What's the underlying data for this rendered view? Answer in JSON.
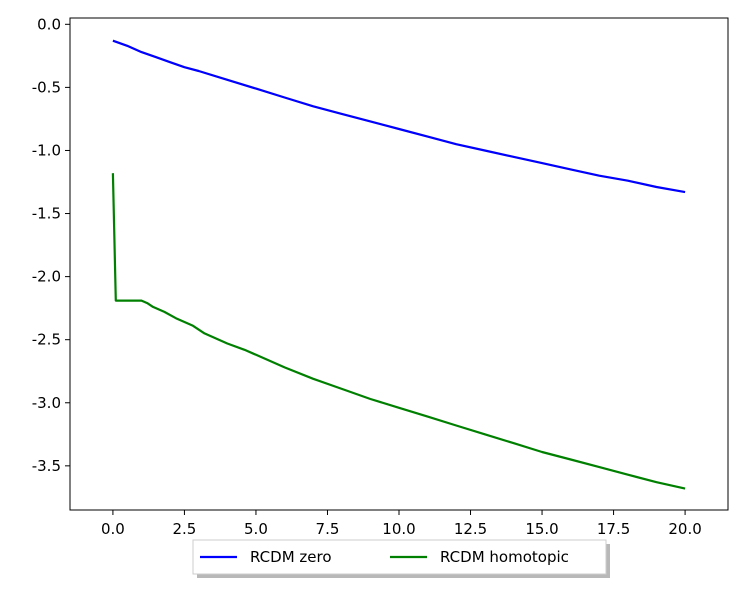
{
  "chart_data": {
    "type": "line",
    "title": "",
    "xlabel": "",
    "ylabel": "",
    "xlim": [
      -1.5,
      21.5
    ],
    "ylim": [
      -3.85,
      0.05
    ],
    "xticks": [
      "0.0",
      "2.5",
      "5.0",
      "7.5",
      "10.0",
      "12.5",
      "15.0",
      "17.5",
      "20.0"
    ],
    "xtick_values": [
      0,
      2.5,
      5,
      7.5,
      10,
      12.5,
      15,
      17.5,
      20
    ],
    "yticks": [
      "0.0",
      "-0.5",
      "-1.0",
      "-1.5",
      "-2.0",
      "-2.5",
      "-3.0",
      "-3.5"
    ],
    "ytick_values": [
      0,
      -0.5,
      -1.0,
      -1.5,
      -2.0,
      -2.5,
      -3.0,
      -3.5
    ],
    "grid": false,
    "legend_position": "bottom-center, below axes",
    "series": [
      {
        "name": "RCDM zero",
        "color": "#0000ff",
        "x": [
          0,
          0.5,
          1,
          1.5,
          2,
          2.5,
          3,
          4,
          5,
          6,
          7,
          8,
          9,
          10,
          11,
          12,
          13,
          14,
          15,
          16,
          17,
          18,
          19,
          20
        ],
        "y": [
          -0.13,
          -0.17,
          -0.22,
          -0.26,
          -0.3,
          -0.34,
          -0.37,
          -0.44,
          -0.51,
          -0.58,
          -0.65,
          -0.71,
          -0.77,
          -0.83,
          -0.89,
          -0.95,
          -1.0,
          -1.05,
          -1.1,
          -1.15,
          -1.2,
          -1.24,
          -1.29,
          -1.33
        ]
      },
      {
        "name": "RCDM homotopic",
        "color": "#008000",
        "x": [
          0,
          0.1,
          0.5,
          1.0,
          1.2,
          1.4,
          1.8,
          2.2,
          2.8,
          3.2,
          4.0,
          4.6,
          5.0,
          6.0,
          7.0,
          8.0,
          9.0,
          10.0,
          11.0,
          12.0,
          13.0,
          14.0,
          15.0,
          16.0,
          17.0,
          18.0,
          19.0,
          20.0
        ],
        "y": [
          -1.18,
          -2.19,
          -2.19,
          -2.19,
          -2.21,
          -2.24,
          -2.28,
          -2.33,
          -2.39,
          -2.45,
          -2.53,
          -2.58,
          -2.62,
          -2.72,
          -2.81,
          -2.89,
          -2.97,
          -3.04,
          -3.11,
          -3.18,
          -3.25,
          -3.32,
          -3.39,
          -3.45,
          -3.51,
          -3.57,
          -3.63,
          -3.68
        ]
      }
    ]
  }
}
